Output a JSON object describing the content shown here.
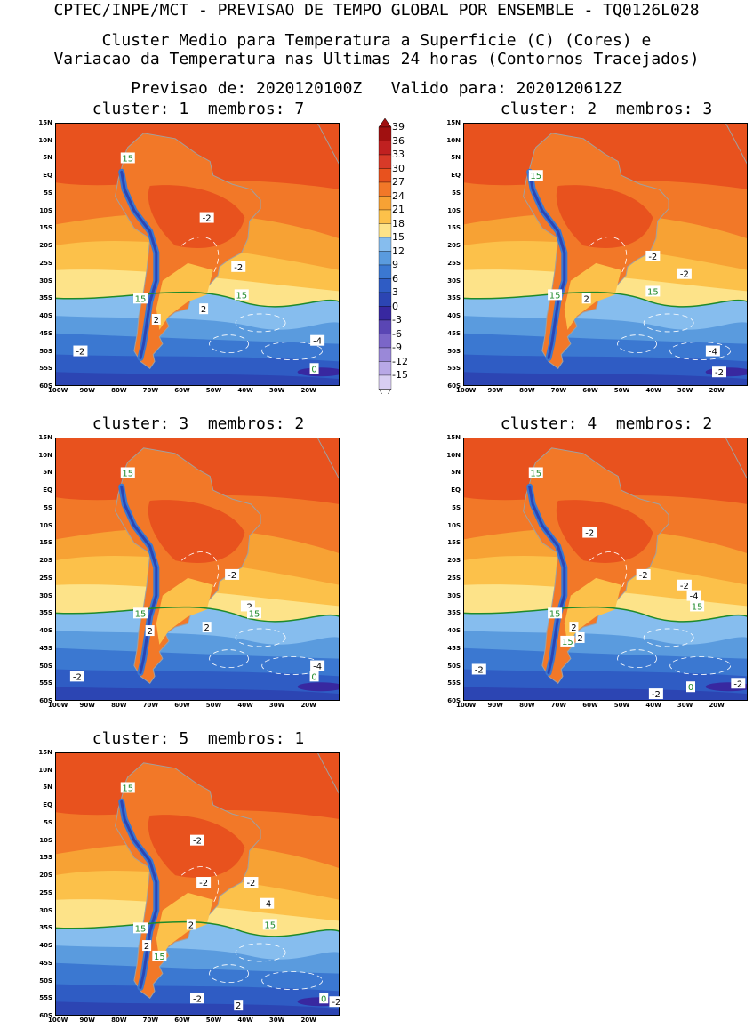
{
  "header": {
    "line1": "CPTEC/INPE/MCT - PREVISAO DE TEMPO GLOBAL POR ENSEMBLE - TQ0126L028",
    "line2": "Cluster Medio para Temperatura a Superficie (C) (Cores) e",
    "line3": "Variacao da Temperatura nas Ultimas 24 horas (Contornos Tracejados)",
    "line4": "Previsao de: 2020120100Z   Valido para: 2020120612Z"
  },
  "panels": [
    {
      "title": "cluster: 1  membros: 7",
      "labels": [
        {
          "t": "15",
          "c": "g",
          "lon": -77,
          "lat": 5
        },
        {
          "t": "-2",
          "c": "w",
          "lon": -52,
          "lat": -12
        },
        {
          "t": "-2",
          "c": "w",
          "lon": -42,
          "lat": -26
        },
        {
          "t": "15",
          "c": "g",
          "lon": -73,
          "lat": -35
        },
        {
          "t": "2",
          "c": "w",
          "lon": -53,
          "lat": -38
        },
        {
          "t": "15",
          "c": "g",
          "lon": -41,
          "lat": -34
        },
        {
          "t": "2",
          "c": "w",
          "lon": -68,
          "lat": -41
        },
        {
          "t": "-2",
          "c": "w",
          "lon": -92,
          "lat": -50
        },
        {
          "t": "-4",
          "c": "w",
          "lon": -17,
          "lat": -47
        },
        {
          "t": "0",
          "c": "g",
          "lon": -18,
          "lat": -55
        }
      ]
    },
    {
      "title": "cluster: 2  membros: 3",
      "labels": [
        {
          "t": "15",
          "c": "g",
          "lon": -77,
          "lat": 0
        },
        {
          "t": "-2",
          "c": "w",
          "lon": -40,
          "lat": -23
        },
        {
          "t": "-2",
          "c": "w",
          "lon": -30,
          "lat": -28
        },
        {
          "t": "15",
          "c": "g",
          "lon": -71,
          "lat": -34
        },
        {
          "t": "2",
          "c": "w",
          "lon": -61,
          "lat": -35
        },
        {
          "t": "15",
          "c": "g",
          "lon": -40,
          "lat": -33
        },
        {
          "t": "-4",
          "c": "w",
          "lon": -21,
          "lat": -50
        },
        {
          "t": "-2",
          "c": "w",
          "lon": -19,
          "lat": -56
        }
      ]
    },
    {
      "title": "cluster: 3  membros: 2",
      "labels": [
        {
          "t": "15",
          "c": "g",
          "lon": -77,
          "lat": 5
        },
        {
          "t": "-2",
          "c": "w",
          "lon": -44,
          "lat": -24
        },
        {
          "t": "-2",
          "c": "w",
          "lon": -39,
          "lat": -33
        },
        {
          "t": "15",
          "c": "g",
          "lon": -37,
          "lat": -35
        },
        {
          "t": "15",
          "c": "g",
          "lon": -73,
          "lat": -35
        },
        {
          "t": "2",
          "c": "w",
          "lon": -70,
          "lat": -40
        },
        {
          "t": "2",
          "c": "w",
          "lon": -52,
          "lat": -39
        },
        {
          "t": "-2",
          "c": "w",
          "lon": -93,
          "lat": -53
        },
        {
          "t": "-4",
          "c": "w",
          "lon": -17,
          "lat": -50
        },
        {
          "t": "0",
          "c": "g",
          "lon": -18,
          "lat": -53
        }
      ]
    },
    {
      "title": "cluster: 4  membros: 2",
      "labels": [
        {
          "t": "15",
          "c": "g",
          "lon": -77,
          "lat": 5
        },
        {
          "t": "-2",
          "c": "w",
          "lon": -60,
          "lat": -12
        },
        {
          "t": "-2",
          "c": "w",
          "lon": -43,
          "lat": -24
        },
        {
          "t": "-2",
          "c": "w",
          "lon": -30,
          "lat": -27
        },
        {
          "t": "-4",
          "c": "w",
          "lon": -27,
          "lat": -30
        },
        {
          "t": "15",
          "c": "g",
          "lon": -71,
          "lat": -35
        },
        {
          "t": "15",
          "c": "g",
          "lon": -26,
          "lat": -33
        },
        {
          "t": "2",
          "c": "w",
          "lon": -65,
          "lat": -39
        },
        {
          "t": "2",
          "c": "w",
          "lon": -63,
          "lat": -42
        },
        {
          "t": "15",
          "c": "g",
          "lon": -67,
          "lat": -43
        },
        {
          "t": "-2",
          "c": "w",
          "lon": -95,
          "lat": -51
        },
        {
          "t": "0",
          "c": "g",
          "lon": -28,
          "lat": -56
        },
        {
          "t": "-2",
          "c": "w",
          "lon": -13,
          "lat": -55
        },
        {
          "t": "-2",
          "c": "w",
          "lon": -39,
          "lat": -58
        }
      ]
    },
    {
      "title": "cluster: 5  membros: 1",
      "labels": [
        {
          "t": "15",
          "c": "g",
          "lon": -77,
          "lat": 5
        },
        {
          "t": "-2",
          "c": "w",
          "lon": -55,
          "lat": -10
        },
        {
          "t": "-2",
          "c": "w",
          "lon": -53,
          "lat": -22
        },
        {
          "t": "-2",
          "c": "w",
          "lon": -38,
          "lat": -22
        },
        {
          "t": "-4",
          "c": "w",
          "lon": -33,
          "lat": -28
        },
        {
          "t": "15",
          "c": "g",
          "lon": -73,
          "lat": -35
        },
        {
          "t": "2",
          "c": "w",
          "lon": -57,
          "lat": -34
        },
        {
          "t": "15",
          "c": "g",
          "lon": -32,
          "lat": -34
        },
        {
          "t": "2",
          "c": "w",
          "lon": -71,
          "lat": -40
        },
        {
          "t": "15",
          "c": "g",
          "lon": -67,
          "lat": -43
        },
        {
          "t": "-2",
          "c": "w",
          "lon": -55,
          "lat": -55
        },
        {
          "t": "2",
          "c": "w",
          "lon": -42,
          "lat": -57
        },
        {
          "t": "0",
          "c": "g",
          "lon": -15,
          "lat": -55
        },
        {
          "t": "-2",
          "c": "w",
          "lon": -11,
          "lat": -56
        }
      ]
    }
  ],
  "axes": {
    "lat_labels": [
      "15N",
      "10N",
      "5N",
      "EQ",
      "5S",
      "10S",
      "15S",
      "20S",
      "25S",
      "30S",
      "35S",
      "40S",
      "45S",
      "50S",
      "55S",
      "60S"
    ],
    "lon_labels": [
      "100W",
      "90W",
      "80W",
      "70W",
      "60W",
      "50W",
      "40W",
      "30W",
      "20W"
    ]
  },
  "colorbar": {
    "labels": [
      "39",
      "36",
      "33",
      "30",
      "27",
      "24",
      "21",
      "18",
      "15",
      "12",
      "9",
      "6",
      "3",
      "0",
      "-3",
      "-6",
      "-9",
      "-12",
      "-15"
    ],
    "colors": [
      "#a01010",
      "#c02020",
      "#d83a28",
      "#e8521e",
      "#f27828",
      "#f7a234",
      "#fcc14a",
      "#fde389",
      "#86bdee",
      "#5a9bde",
      "#3b78d1",
      "#2f5cc4",
      "#2c45b3",
      "#3828a0",
      "#5a46b4",
      "#7b66c8",
      "#9a88d8",
      "#b8a8e6",
      "#d8cef2"
    ]
  }
}
